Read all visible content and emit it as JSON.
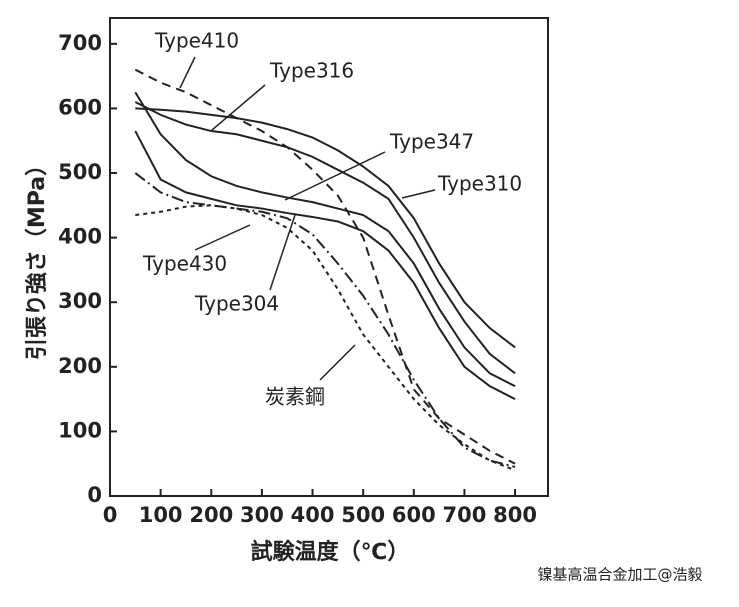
{
  "chart_data": {
    "type": "line",
    "ylabel": "引張り強さ（MPa）",
    "xlabel": "試験温度（℃）",
    "x": [
      50,
      100,
      150,
      200,
      250,
      300,
      350,
      400,
      450,
      500,
      550,
      600,
      650,
      700,
      750,
      800
    ],
    "xlim": [
      0,
      865
    ],
    "ylim": [
      0,
      740
    ],
    "xticks": [
      0,
      100,
      200,
      300,
      400,
      500,
      600,
      700,
      800
    ],
    "yticks": [
      0,
      100,
      200,
      300,
      400,
      500,
      600,
      700
    ],
    "series": [
      {
        "name": "Type410",
        "color": "#222222",
        "style": "dashed",
        "values": [
          660,
          640,
          625,
          605,
          585,
          565,
          540,
          505,
          465,
          400,
          280,
          165,
          120,
          95,
          70,
          50
        ]
      },
      {
        "name": "Type316",
        "color": "#222222",
        "style": "solid",
        "values": [
          610,
          590,
          575,
          565,
          560,
          550,
          540,
          525,
          505,
          485,
          460,
          400,
          330,
          270,
          220,
          190
        ]
      },
      {
        "name": "Type347",
        "color": "#222222",
        "style": "solid",
        "values": [
          625,
          560,
          520,
          495,
          480,
          470,
          462,
          455,
          445,
          435,
          410,
          360,
          290,
          230,
          190,
          170
        ]
      },
      {
        "name": "Type310",
        "color": "#222222",
        "style": "solid",
        "values": [
          600,
          598,
          595,
          590,
          585,
          578,
          568,
          555,
          535,
          510,
          480,
          430,
          360,
          300,
          260,
          230
        ]
      },
      {
        "name": "Type430",
        "color": "#222222",
        "style": "dashdot",
        "values": [
          500,
          470,
          455,
          450,
          445,
          440,
          430,
          405,
          360,
          310,
          250,
          180,
          120,
          75,
          55,
          45
        ]
      },
      {
        "name": "Type304",
        "color": "#222222",
        "style": "solid",
        "values": [
          565,
          490,
          470,
          460,
          450,
          445,
          438,
          432,
          425,
          410,
          380,
          330,
          260,
          200,
          170,
          150
        ]
      },
      {
        "name": "炭素鋼",
        "color": "#222222",
        "style": "shortdash",
        "values": [
          435,
          440,
          448,
          450,
          445,
          435,
          415,
          380,
          320,
          250,
          200,
          150,
          110,
          80,
          55,
          40
        ]
      }
    ],
    "watermark": "镍基高温合金加工@浩毅"
  }
}
